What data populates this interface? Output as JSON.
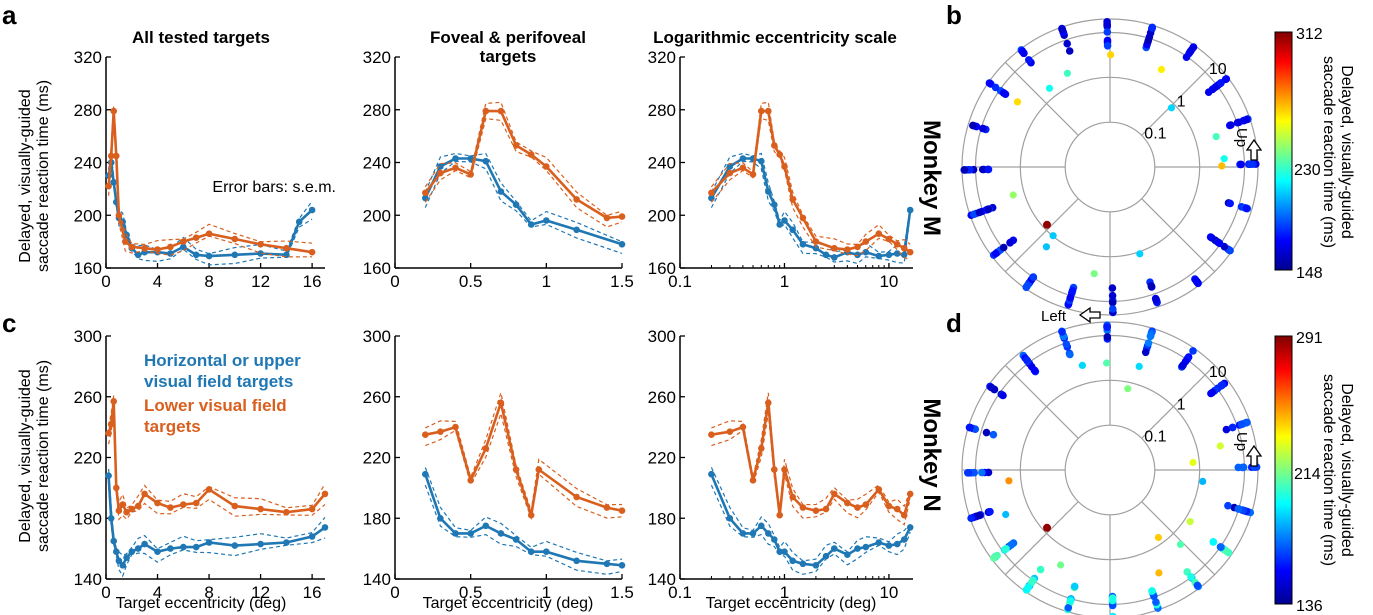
{
  "colors": {
    "blue": "#1f77b4",
    "orange": "#d95f1e",
    "axis": "#000000",
    "grid": "#a0a0a0"
  },
  "panel_labels": {
    "a": "a",
    "b": "b",
    "c": "c",
    "d": "d"
  },
  "monkey_labels": {
    "top": "Monkey M",
    "bottom": "Monkey N"
  },
  "titles": {
    "all": "All tested targets",
    "foveal_line1": "Foveal & perifoveal",
    "foveal_line2": "targets",
    "log": "Logarithmic eccentricity scale"
  },
  "ylabel_line1": "Delayed, visually-guided",
  "ylabel_line2": "saccade reaction time (ms)",
  "xlabel": "Target eccentricity (deg)",
  "annotations": {
    "error_bars": "Error bars: s.e.m.",
    "legend_blue_1": "Horizontal or upper",
    "legend_blue_2": "visual field targets",
    "legend_orange_1": "Lower visual field",
    "legend_orange_2": "targets"
  },
  "polar": {
    "ring_labels": [
      "0.1",
      "1",
      "10"
    ],
    "up_label": "Up",
    "left_label": "Left",
    "colorbar_label_1": "Delayed, visually-guided",
    "colorbar_label_2": "saccade reaction time (ms)",
    "M": {
      "max": "312",
      "mid": "230",
      "min": "148"
    },
    "N": {
      "max": "291",
      "mid": "214",
      "min": "136"
    }
  },
  "chart_data": [
    {
      "type": "line",
      "panel": "a-left",
      "xlim": [
        0,
        17
      ],
      "ylim": [
        160,
        320
      ],
      "xticks": [
        "0",
        "4",
        "8",
        "12",
        "16"
      ],
      "yticks": [
        "160",
        "200",
        "240",
        "280",
        "320"
      ],
      "series": [
        {
          "x": [
            0.2,
            0.4,
            0.6,
            0.8,
            1.0,
            1.3,
            1.6,
            2.0,
            2.5,
            3,
            4,
            5,
            6,
            7,
            8,
            10,
            12,
            14,
            15,
            16
          ],
          "y": [
            230,
            240,
            225,
            210,
            198,
            195,
            185,
            175,
            170,
            172,
            172,
            171,
            176,
            170,
            169,
            170,
            171,
            170,
            195,
            204
          ]
        },
        {
          "x": [
            0.2,
            0.4,
            0.6,
            0.8,
            1.0,
            1.5,
            2,
            3,
            4,
            5,
            6,
            7,
            8,
            10,
            12,
            14,
            16
          ],
          "y": [
            222,
            245,
            279,
            245,
            200,
            180,
            176,
            175,
            174,
            176,
            180,
            183,
            186,
            182,
            178,
            175,
            172
          ]
        }
      ]
    },
    {
      "type": "line",
      "panel": "a-mid",
      "xlim": [
        0,
        1.5
      ],
      "ylim": [
        160,
        320
      ],
      "xticks": [
        "0",
        "0.5",
        "1",
        "1.5"
      ],
      "yticks": [
        "160",
        "200",
        "240",
        "280",
        "320"
      ],
      "series": [
        {
          "x": [
            0.2,
            0.3,
            0.4,
            0.5,
            0.6,
            0.7,
            0.8,
            0.9,
            1.0,
            1.2,
            1.5
          ],
          "y": [
            213,
            237,
            243,
            243,
            241,
            218,
            208,
            193,
            196,
            189,
            178
          ]
        },
        {
          "x": [
            0.2,
            0.3,
            0.4,
            0.5,
            0.6,
            0.7,
            0.8,
            0.9,
            1.0,
            1.2,
            1.4,
            1.5
          ],
          "y": [
            217,
            232,
            236,
            231,
            279,
            279,
            253,
            246,
            237,
            212,
            198,
            199
          ]
        }
      ]
    },
    {
      "type": "line",
      "panel": "a-right",
      "xscale": "log",
      "xlim": [
        0.1,
        17
      ],
      "ylim": [
        160,
        320
      ],
      "xticks": [
        "0.1",
        "1",
        "10"
      ],
      "yticks": [
        "160",
        "200",
        "240",
        "280",
        "320"
      ],
      "series": [
        {
          "x": [
            0.2,
            0.3,
            0.4,
            0.5,
            0.6,
            0.7,
            0.8,
            0.9,
            1.0,
            1.2,
            1.5,
            2,
            2.5,
            3,
            4,
            5,
            6,
            8,
            10,
            12,
            14,
            16
          ],
          "y": [
            213,
            237,
            243,
            243,
            241,
            218,
            208,
            193,
            196,
            189,
            178,
            175,
            170,
            168,
            172,
            170,
            172,
            169,
            170,
            171,
            170,
            204
          ]
        },
        {
          "x": [
            0.2,
            0.3,
            0.4,
            0.5,
            0.6,
            0.7,
            0.8,
            0.9,
            1.0,
            1.2,
            1.5,
            2,
            3,
            4,
            5,
            6,
            8,
            10,
            12,
            14,
            16
          ],
          "y": [
            217,
            232,
            236,
            231,
            279,
            279,
            253,
            246,
            237,
            212,
            198,
            180,
            175,
            174,
            176,
            180,
            186,
            182,
            178,
            175,
            172
          ]
        }
      ]
    },
    {
      "type": "line",
      "panel": "c-left",
      "xlim": [
        0,
        17
      ],
      "ylim": [
        140,
        300
      ],
      "xticks": [
        "0",
        "4",
        "8",
        "12",
        "16"
      ],
      "yticks": [
        "140",
        "180",
        "220",
        "260",
        "300"
      ],
      "series": [
        {
          "x": [
            0.2,
            0.4,
            0.6,
            0.8,
            1.0,
            1.3,
            1.6,
            2,
            2.5,
            3,
            4,
            5,
            6,
            7,
            8,
            10,
            12,
            14,
            16,
            17
          ],
          "y": [
            208,
            180,
            165,
            158,
            152,
            149,
            154,
            158,
            160,
            163,
            158,
            160,
            161,
            161,
            164,
            162,
            163,
            164,
            168,
            174
          ]
        },
        {
          "x": [
            0.2,
            0.4,
            0.6,
            0.8,
            1.0,
            1.3,
            1.6,
            2,
            2.5,
            3,
            4,
            5,
            6,
            7,
            8,
            10,
            12,
            14,
            16,
            17
          ],
          "y": [
            236,
            242,
            257,
            200,
            185,
            189,
            184,
            186,
            188,
            196,
            190,
            187,
            189,
            190,
            199,
            188,
            186,
            184,
            186,
            196
          ]
        }
      ]
    },
    {
      "type": "line",
      "panel": "c-mid",
      "xlim": [
        0,
        1.5
      ],
      "ylim": [
        140,
        300
      ],
      "xticks": [
        "0",
        "0.5",
        "1",
        "1.5"
      ],
      "yticks": [
        "140",
        "180",
        "220",
        "260",
        "300"
      ],
      "series": [
        {
          "x": [
            0.2,
            0.3,
            0.4,
            0.5,
            0.6,
            0.7,
            0.8,
            0.9,
            1.0,
            1.2,
            1.4,
            1.5
          ],
          "y": [
            209,
            180,
            170,
            170,
            175,
            170,
            166,
            158,
            158,
            152,
            150,
            149
          ]
        },
        {
          "x": [
            0.2,
            0.3,
            0.4,
            0.5,
            0.6,
            0.7,
            0.8,
            0.9,
            0.95,
            1.2,
            1.4,
            1.5
          ],
          "y": [
            235,
            237,
            240,
            205,
            226,
            256,
            212,
            182,
            212,
            194,
            187,
            185
          ]
        }
      ]
    },
    {
      "type": "line",
      "panel": "c-right",
      "xscale": "log",
      "xlim": [
        0.1,
        17
      ],
      "ylim": [
        140,
        300
      ],
      "xticks": [
        "0.1",
        "1",
        "10"
      ],
      "yticks": [
        "140",
        "180",
        "220",
        "260",
        "300"
      ],
      "series": [
        {
          "x": [
            0.2,
            0.3,
            0.4,
            0.5,
            0.6,
            0.7,
            0.8,
            0.9,
            1.0,
            1.2,
            1.5,
            2,
            2.5,
            3,
            4,
            5,
            6,
            8,
            10,
            12,
            14,
            16
          ],
          "y": [
            209,
            180,
            170,
            170,
            175,
            170,
            166,
            158,
            158,
            152,
            150,
            149,
            155,
            160,
            156,
            160,
            161,
            164,
            162,
            163,
            166,
            174
          ]
        },
        {
          "x": [
            0.2,
            0.3,
            0.4,
            0.5,
            0.6,
            0.7,
            0.8,
            0.9,
            1.0,
            1.2,
            1.5,
            2,
            2.5,
            3,
            4,
            5,
            6,
            8,
            10,
            12,
            14,
            16
          ],
          "y": [
            235,
            237,
            240,
            205,
            226,
            256,
            212,
            182,
            212,
            194,
            187,
            185,
            186,
            196,
            190,
            187,
            189,
            199,
            188,
            186,
            182,
            196
          ]
        }
      ]
    }
  ]
}
